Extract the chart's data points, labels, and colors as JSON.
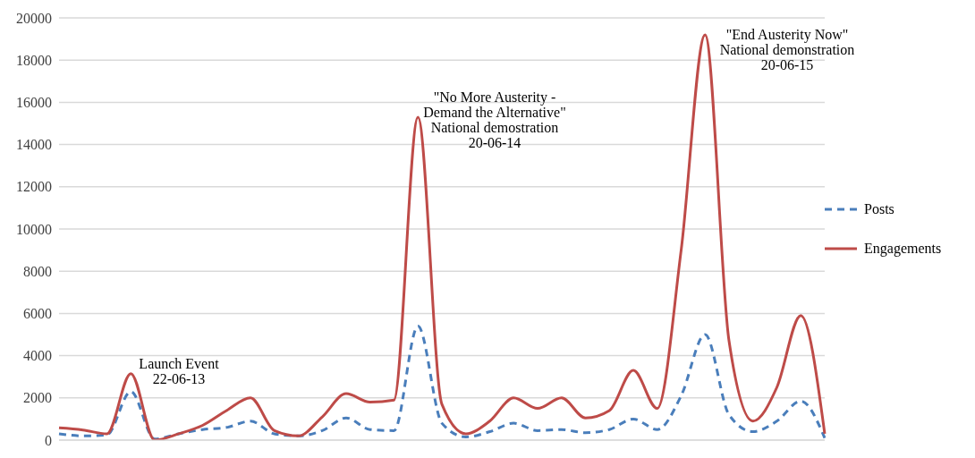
{
  "chart_data": {
    "type": "line",
    "categories": [
      null,
      null,
      null,
      null,
      null,
      null,
      null,
      null,
      null,
      null,
      null,
      null,
      null,
      null,
      null,
      null,
      null,
      null,
      null,
      null,
      null,
      null,
      null,
      null,
      null,
      null,
      null,
      null,
      null,
      null,
      null,
      null,
      null
    ],
    "series": [
      {
        "name": "Posts",
        "color": "#4a7ebb",
        "line_style": "dashed",
        "values": [
          300,
          200,
          250,
          2300,
          50,
          300,
          500,
          600,
          900,
          300,
          200,
          450,
          1050,
          500,
          450,
          5400,
          800,
          150,
          400,
          800,
          450,
          500,
          350,
          500,
          1000,
          500,
          2100,
          5000,
          1200,
          400,
          900,
          1850,
          100
        ]
      },
      {
        "name": "Engagements",
        "color": "#be4b48",
        "line_style": "solid",
        "values": [
          580,
          480,
          300,
          3150,
          0,
          300,
          700,
          1400,
          2000,
          450,
          200,
          1100,
          2200,
          1800,
          1900,
          15300,
          1700,
          300,
          900,
          2000,
          1500,
          2000,
          1050,
          1400,
          3300,
          1500,
          9000,
          19200,
          4700,
          900,
          2500,
          5900,
          300
        ]
      }
    ],
    "ylim": [
      0,
      20000
    ],
    "yticks": [
      0,
      2000,
      4000,
      6000,
      8000,
      10000,
      12000,
      14000,
      16000,
      18000,
      20000
    ],
    "grid": "y",
    "legend": "right",
    "marker": "none",
    "tick_labels": "y",
    "annotations": [
      "Launch Event\n22-06-13",
      "\"No More Austerity -\nDemand the Alternative\"\nNational demostration\n20-06-14",
      "\"End Austerity Now\"\nNational demonstration\n20-06-15"
    ]
  }
}
